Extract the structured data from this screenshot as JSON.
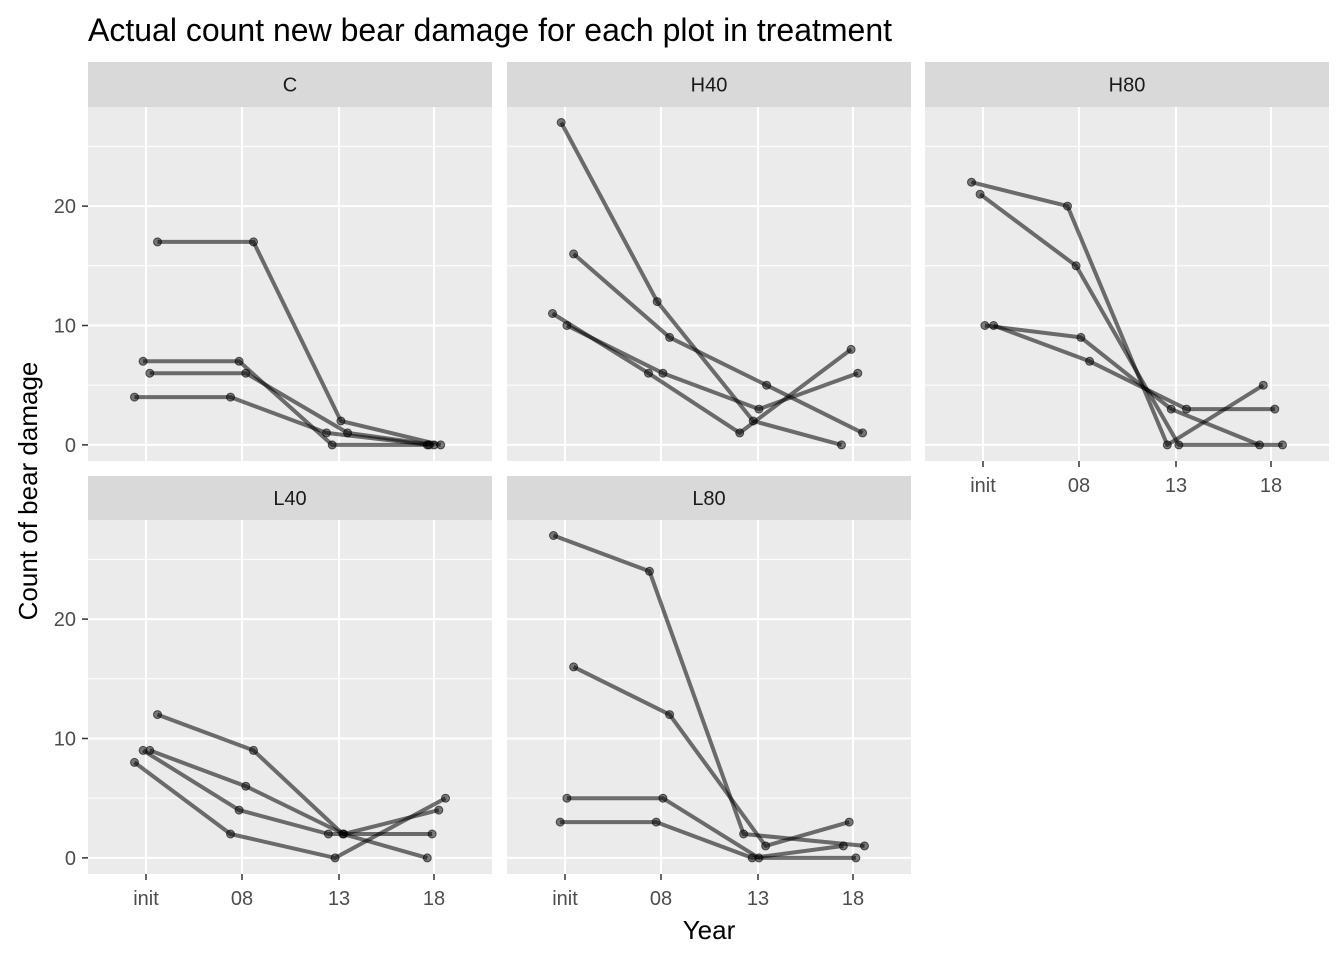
{
  "chart_data": {
    "type": "line",
    "title": "Actual count new bear damage for each plot in treatment",
    "xlabel": "Year",
    "ylabel": "Count of bear damage",
    "x_categories": [
      "init",
      "08",
      "13",
      "18"
    ],
    "y_ticks": [
      0,
      10,
      20
    ],
    "ylim": [
      -1.35,
      28.3
    ],
    "grid": true,
    "facets": [
      {
        "name": "C",
        "series": [
          {
            "x": [
              0.12,
              1.12,
              2.03,
              3.07
            ],
            "y": [
              17,
              17,
              2,
              0
            ]
          },
          {
            "x": [
              -0.03,
              0.97,
              1.94,
              2.93
            ],
            "y": [
              7,
              7,
              0,
              0
            ]
          },
          {
            "x": [
              0.04,
              1.04,
              2.1,
              3.0
            ],
            "y": [
              6,
              6,
              1,
              0
            ]
          },
          {
            "x": [
              -0.12,
              0.88,
              1.88,
              2.95
            ],
            "y": [
              4,
              4,
              1,
              0
            ]
          }
        ]
      },
      {
        "name": "H40",
        "series": [
          {
            "x": [
              -0.04,
              0.96,
              1.96,
              2.88
            ],
            "y": [
              27,
              12,
              2,
              0
            ]
          },
          {
            "x": [
              0.09,
              1.09,
              2.1,
              3.1
            ],
            "y": [
              16,
              9,
              5,
              1
            ]
          },
          {
            "x": [
              -0.13,
              0.87,
              1.82,
              2.98
            ],
            "y": [
              11,
              6,
              1,
              8
            ]
          },
          {
            "x": [
              0.02,
              1.02,
              2.02,
              3.05
            ],
            "y": [
              10,
              6,
              3,
              6
            ]
          }
        ]
      },
      {
        "name": "H80",
        "series": [
          {
            "x": [
              -0.12,
              0.88,
              1.92,
              2.92
            ],
            "y": [
              22,
              20,
              0,
              5
            ]
          },
          {
            "x": [
              -0.03,
              0.97,
              2.04,
              3.12
            ],
            "y": [
              21,
              15,
              0,
              0
            ]
          },
          {
            "x": [
              0.02,
              1.02,
              1.96,
              2.88
            ],
            "y": [
              10,
              9,
              3,
              0
            ]
          },
          {
            "x": [
              0.11,
              1.11,
              2.12,
              3.04
            ],
            "y": [
              10,
              7,
              3,
              3
            ]
          }
        ]
      },
      {
        "name": "L40",
        "series": [
          {
            "x": [
              0.12,
              1.12,
              2.05,
              2.93
            ],
            "y": [
              12,
              9,
              2,
              0
            ]
          },
          {
            "x": [
              -0.03,
              0.97,
              1.9,
              2.98
            ],
            "y": [
              9,
              4,
              2,
              2
            ]
          },
          {
            "x": [
              0.04,
              1.04,
              2.06,
              3.05
            ],
            "y": [
              9,
              6,
              2,
              4
            ]
          },
          {
            "x": [
              -0.12,
              0.88,
              1.97,
              3.12
            ],
            "y": [
              8,
              2,
              0,
              5
            ]
          }
        ]
      },
      {
        "name": "L80",
        "series": [
          {
            "x": [
              -0.12,
              0.88,
              1.86,
              3.12
            ],
            "y": [
              27,
              24,
              2,
              1
            ]
          },
          {
            "x": [
              0.09,
              1.09,
              2.09,
              2.96
            ],
            "y": [
              16,
              12,
              1,
              3
            ]
          },
          {
            "x": [
              0.02,
              1.02,
              2.02,
              3.03
            ],
            "y": [
              5,
              5,
              0,
              0
            ]
          },
          {
            "x": [
              -0.05,
              0.95,
              1.95,
              2.9
            ],
            "y": [
              3,
              3,
              0,
              1
            ]
          }
        ]
      }
    ]
  }
}
